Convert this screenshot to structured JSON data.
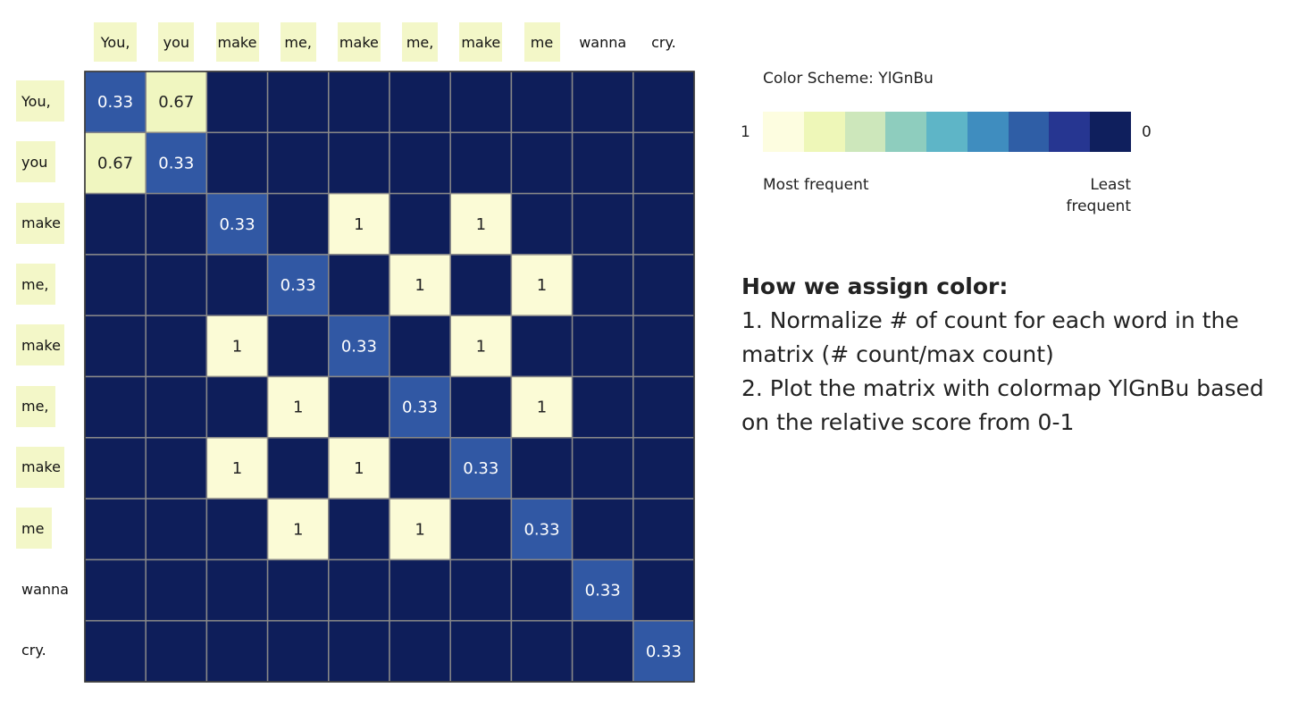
{
  "chart_data": {
    "type": "heatmap",
    "x_labels": [
      "You,",
      "you",
      "make",
      "me,",
      "make",
      "me,",
      "make",
      "me",
      "wanna",
      "cry."
    ],
    "y_labels": [
      "You,",
      "you",
      "make",
      "me,",
      "make",
      "me,",
      "make",
      "me",
      "wanna",
      "cry."
    ],
    "highlighted_labels": [
      true,
      true,
      true,
      true,
      true,
      true,
      true,
      true,
      false,
      false
    ],
    "values": [
      [
        0.33,
        0.67,
        0,
        0,
        0,
        0,
        0,
        0,
        0,
        0
      ],
      [
        0.67,
        0.33,
        0,
        0,
        0,
        0,
        0,
        0,
        0,
        0
      ],
      [
        0,
        0,
        0.33,
        0,
        1,
        0,
        1,
        0,
        0,
        0
      ],
      [
        0,
        0,
        0,
        0.33,
        0,
        1,
        0,
        1,
        0,
        0
      ],
      [
        0,
        0,
        1,
        0,
        0.33,
        0,
        1,
        0,
        0,
        0
      ],
      [
        0,
        0,
        0,
        1,
        0,
        0.33,
        0,
        1,
        0,
        0
      ],
      [
        0,
        0,
        1,
        0,
        1,
        0,
        0.33,
        0,
        0,
        0
      ],
      [
        0,
        0,
        0,
        1,
        0,
        1,
        0,
        0.33,
        0,
        0
      ],
      [
        0,
        0,
        0,
        0,
        0,
        0,
        0,
        0,
        0.33,
        0
      ],
      [
        0,
        0,
        0,
        0,
        0,
        0,
        0,
        0,
        0,
        0.33
      ]
    ],
    "cell_labels": [
      [
        "0.33",
        "0.67",
        "",
        "",
        "",
        "",
        "",
        "",
        "",
        ""
      ],
      [
        "0.67",
        "0.33",
        "",
        "",
        "",
        "",
        "",
        "",
        "",
        ""
      ],
      [
        "",
        "",
        "0.33",
        "",
        "1",
        "",
        "1",
        "",
        "",
        ""
      ],
      [
        "",
        "",
        "",
        "0.33",
        "",
        "1",
        "",
        "1",
        "",
        ""
      ],
      [
        "",
        "",
        "1",
        "",
        "0.33",
        "",
        "1",
        "",
        "",
        ""
      ],
      [
        "",
        "",
        "",
        "1",
        "",
        "0.33",
        "",
        "1",
        "",
        ""
      ],
      [
        "",
        "",
        "1",
        "",
        "1",
        "",
        "0.33",
        "",
        "",
        ""
      ],
      [
        "",
        "",
        "",
        "1",
        "",
        "1",
        "",
        "0.33",
        "",
        ""
      ],
      [
        "",
        "",
        "",
        "",
        "",
        "",
        "",
        "",
        "0.33",
        ""
      ],
      [
        "",
        "",
        "",
        "",
        "",
        "",
        "",
        "",
        "",
        "0.33"
      ]
    ],
    "colormap": "YlGnBu",
    "value_range": [
      0,
      1
    ],
    "colors": {
      "high": "#fbfbd6",
      "mid": "#f0f6c0",
      "low_mid": "#3158a4",
      "low": "#0e1e5a",
      "grid": "#888888"
    }
  },
  "legend": {
    "title": "Color Scheme: YlGnBu",
    "high_value": "1",
    "low_value": "0",
    "most_label": "Most frequent",
    "least_label": "Least frequent",
    "swatches": [
      "#fdfde0",
      "#eef7b8",
      "#cde7bb",
      "#8ecdbe",
      "#5eb5c7",
      "#3f8dbf",
      "#2f5ea6",
      "#263691",
      "#0f1f5d"
    ]
  },
  "explanation": {
    "heading": "How we assign color:",
    "steps": [
      "1. Normalize # of count for each word in the matrix (# count/max count)",
      "2. Plot the matrix with colormap YlGnBu based on the relative score from 0-1"
    ]
  }
}
